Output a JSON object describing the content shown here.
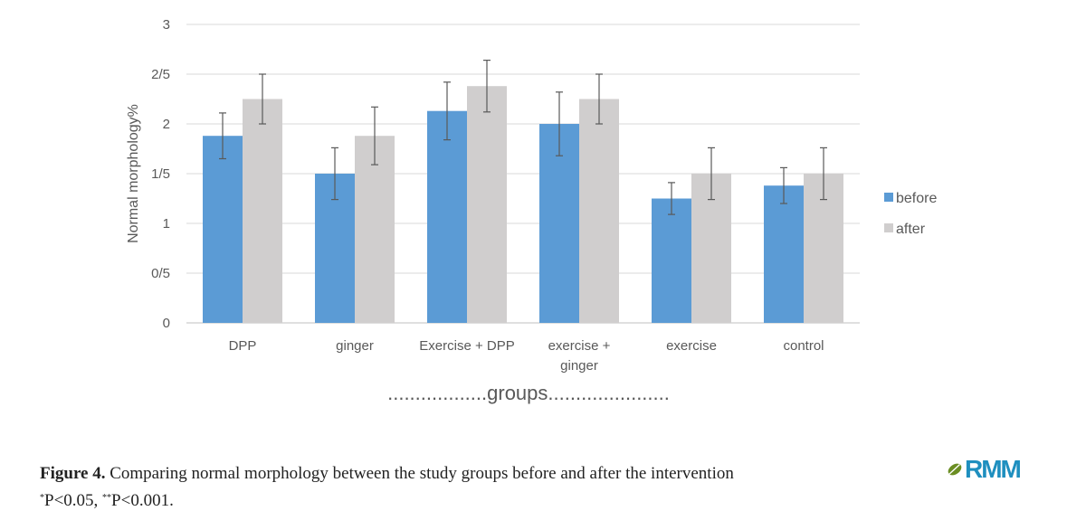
{
  "chart_data": {
    "type": "bar",
    "title": "",
    "ylabel": "Normal morphology%",
    "xlabel": "..................groups......................",
    "ylim": [
      0,
      3
    ],
    "yticks": [
      {
        "value": 0,
        "label": "0"
      },
      {
        "value": 0.5,
        "label": "0/5"
      },
      {
        "value": 1,
        "label": "1"
      },
      {
        "value": 1.5,
        "label": "1/5"
      },
      {
        "value": 2,
        "label": "2"
      },
      {
        "value": 2.5,
        "label": "2/5"
      },
      {
        "value": 3,
        "label": "3"
      }
    ],
    "categories": [
      [
        "DPP"
      ],
      [
        "ginger"
      ],
      [
        "Exercise + DPP"
      ],
      [
        "exercise +",
        "ginger"
      ],
      [
        "exercise"
      ],
      [
        "control"
      ]
    ],
    "series": [
      {
        "name": "before",
        "color": "#5b9bd5",
        "values": [
          1.88,
          1.5,
          2.13,
          2.0,
          1.25,
          1.38
        ],
        "errors": [
          0.23,
          0.26,
          0.29,
          0.32,
          0.16,
          0.18
        ]
      },
      {
        "name": "after",
        "color": "#d0cece",
        "values": [
          2.25,
          1.88,
          2.38,
          2.25,
          1.5,
          1.5
        ],
        "errors": [
          0.25,
          0.29,
          0.26,
          0.25,
          0.26,
          0.26
        ]
      }
    ],
    "grid": true,
    "legend_position": "right"
  },
  "caption": {
    "label": "Figure 4.",
    "text": " Comparing normal morphology between the study groups before and after the intervention",
    "sup1": "*",
    "note1": "P<0.05, ",
    "sup2": "**",
    "note2": "P<0.001."
  },
  "logo": {
    "text": "RMM",
    "icon": "leaf-icon",
    "color": "#1f8fbf"
  }
}
